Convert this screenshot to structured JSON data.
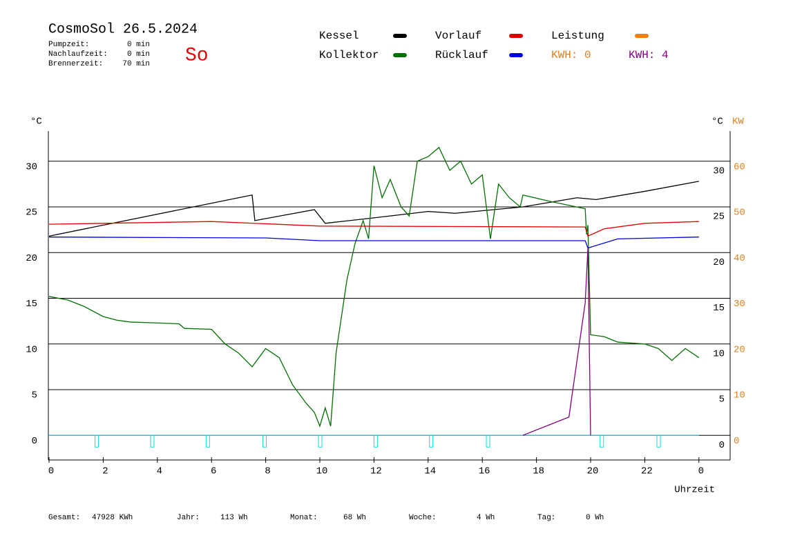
{
  "header": {
    "title": "CosmoSol 26.5.2024",
    "day": "So",
    "stats": [
      {
        "label": "Pumpzeit:",
        "value": "0 min"
      },
      {
        "label": "Nachlaufzeit:",
        "value": "0 min"
      },
      {
        "label": "Brennerzeit:",
        "value": "70 min"
      }
    ],
    "annotations": [
      {
        "text": "KWH: 0",
        "color": "#e08020"
      },
      {
        "text": "KWH: 4",
        "color": "#800080"
      }
    ]
  },
  "chart_data": {
    "type": "line",
    "y_unit": "°C",
    "y2_unit": "°C",
    "y2_unit2": "KW",
    "x_label": "Uhrzeit",
    "xlim": [
      0,
      24
    ],
    "xticks": [
      0,
      2,
      4,
      6,
      8,
      10,
      12,
      14,
      16,
      18,
      20,
      22,
      {
        "value": 24,
        "label": "0"
      }
    ],
    "ylim": [
      -2.7,
      33.3
    ],
    "yticks": [
      0,
      5,
      10,
      15,
      20,
      25,
      30
    ],
    "y2lim": [
      -5.4,
      66.6
    ],
    "y2ticks": [
      0,
      10,
      20,
      30,
      40,
      50,
      60
    ],
    "grid": true,
    "series": [
      {
        "name": "Kessel",
        "color": "#000000",
        "x": [
          0,
          7.5,
          7.6,
          9.8,
          10.2,
          12,
          14,
          15,
          17.5,
          19.5,
          20.2,
          22,
          24
        ],
        "values": [
          21.8,
          26.3,
          23.5,
          24.7,
          23.2,
          23.8,
          24.5,
          24.3,
          25,
          26,
          25.8,
          26.7,
          27.8
        ]
      },
      {
        "name": "Kollektor",
        "color": "#007000",
        "x": [
          0,
          0.7,
          1.3,
          2,
          2.5,
          3,
          4,
          4.8,
          5,
          6,
          6.5,
          7,
          7.5,
          8,
          8.5,
          9,
          9.5,
          9.8,
          10,
          10.2,
          10.4,
          10.6,
          11,
          11.3,
          11.6,
          11.8,
          12,
          12.3,
          12.6,
          13,
          13.3,
          13.6,
          14,
          14.4,
          14.8,
          15.2,
          15.6,
          16,
          16.3,
          16.6,
          17,
          17.4,
          17.5,
          18.5,
          19.8,
          19.85,
          19.9,
          20,
          20.5,
          21,
          22,
          22.5,
          23,
          23.5,
          24
        ],
        "values": [
          15.2,
          14.8,
          14.1,
          13,
          12.6,
          12.4,
          12.3,
          12.2,
          11.7,
          11.6,
          10,
          9,
          7.5,
          9.5,
          8.5,
          5.5,
          3.5,
          2.5,
          1,
          3,
          1,
          9,
          17,
          21,
          23.5,
          21.5,
          29.5,
          26,
          28,
          25,
          24,
          30,
          30.5,
          31.5,
          29,
          30,
          27.5,
          28.5,
          21.5,
          27.5,
          26,
          25,
          26.3,
          25.6,
          24.8,
          22,
          23,
          11,
          10.8,
          10.2,
          10,
          9.5,
          8.2,
          9.5,
          8.5
        ]
      },
      {
        "name": "Vorlauf",
        "color": "#e00000",
        "x": [
          0,
          6,
          10,
          19.8,
          19.9,
          20.5,
          22,
          24
        ],
        "values": [
          23.1,
          23.4,
          22.9,
          22.8,
          21.8,
          22.6,
          23.2,
          23.4
        ]
      },
      {
        "name": "Rücklauf",
        "color": "#0000e0",
        "x": [
          0,
          8,
          10,
          19.8,
          19.9,
          21,
          24
        ],
        "values": [
          21.7,
          21.6,
          21.3,
          21.3,
          20.5,
          21.5,
          21.7
        ]
      },
      {
        "name": "Leistung",
        "color": "#f08010",
        "x": [],
        "values": []
      },
      {
        "color": "#800080",
        "axis": "y2",
        "x": [
          17.5,
          19.2,
          19.8,
          19.9,
          20
        ],
        "values": [
          0,
          4,
          29,
          41,
          0
        ]
      }
    ],
    "pulses": {
      "color": "#00e0e0",
      "x": [
        1.75,
        3.8,
        5.85,
        7.95,
        10,
        12.05,
        14.1,
        16.2,
        20.4,
        22.5
      ]
    }
  },
  "footer": [
    {
      "label": "Gesamt:",
      "value": "47928 KWh"
    },
    {
      "label": "Jahr:",
      "value": "113 Wh"
    },
    {
      "label": "Monat:",
      "value": "68 Wh"
    },
    {
      "label": "Woche:",
      "value": "4 Wh"
    },
    {
      "label": "Tag:",
      "value": "0 Wh"
    }
  ]
}
